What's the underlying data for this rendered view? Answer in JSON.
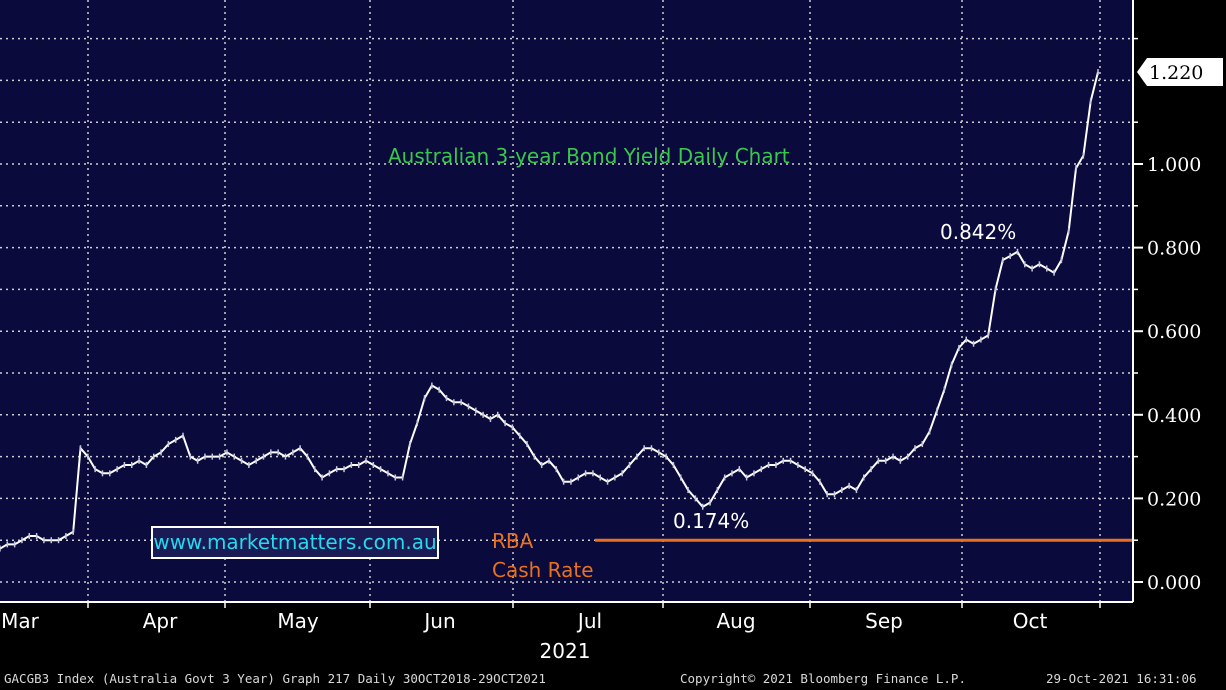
{
  "chart_data": {
    "type": "line",
    "title": "Australian 3-year Bond Yield Daily Chart",
    "year_label": "2021",
    "x_tick_labels": [
      "Mar",
      "Apr",
      "May",
      "Jun",
      "Jul",
      "Aug",
      "Sep",
      "Oct"
    ],
    "y_tick_labels": [
      "0.000",
      "0.200",
      "0.400",
      "0.600",
      "0.800",
      "1.000"
    ],
    "ylim": [
      -0.04,
      1.41
    ],
    "grid": true,
    "last_value_label": "1.220",
    "annotations": {
      "low": "0.174%",
      "high": "0.842%",
      "rba_label_line1": "RBA",
      "rba_label_line2": "Cash Rate"
    },
    "rba_cash_rate": 0.1,
    "series": [
      {
        "values": [
          0.08,
          0.09,
          0.09,
          0.1,
          0.11,
          0.11,
          0.1,
          0.1,
          0.1,
          0.11,
          0.12,
          0.32,
          0.3,
          0.27,
          0.26,
          0.26,
          0.27,
          0.28,
          0.28,
          0.29,
          0.28,
          0.3,
          0.31,
          0.33,
          0.34,
          0.35,
          0.3,
          0.29,
          0.3,
          0.3,
          0.3,
          0.31,
          0.3,
          0.29,
          0.28,
          0.29,
          0.3,
          0.31,
          0.31,
          0.3,
          0.31,
          0.32,
          0.3,
          0.27,
          0.25,
          0.26,
          0.27,
          0.27,
          0.28,
          0.28,
          0.29,
          0.28,
          0.27,
          0.26,
          0.25,
          0.25,
          0.33,
          0.38,
          0.44,
          0.47,
          0.46,
          0.44,
          0.43,
          0.43,
          0.42,
          0.41,
          0.4,
          0.39,
          0.4,
          0.38,
          0.37,
          0.35,
          0.33,
          0.3,
          0.28,
          0.29,
          0.27,
          0.24,
          0.24,
          0.25,
          0.26,
          0.26,
          0.25,
          0.24,
          0.25,
          0.26,
          0.28,
          0.3,
          0.32,
          0.32,
          0.31,
          0.3,
          0.28,
          0.25,
          0.22,
          0.2,
          0.18,
          0.19,
          0.22,
          0.25,
          0.26,
          0.27,
          0.25,
          0.26,
          0.27,
          0.28,
          0.28,
          0.29,
          0.29,
          0.28,
          0.27,
          0.26,
          0.24,
          0.21,
          0.21,
          0.22,
          0.23,
          0.22,
          0.25,
          0.27,
          0.29,
          0.29,
          0.3,
          0.29,
          0.3,
          0.32,
          0.33,
          0.36,
          0.41,
          0.46,
          0.52,
          0.56,
          0.58,
          0.57,
          0.58,
          0.59,
          0.7,
          0.77,
          0.78,
          0.79,
          0.76,
          0.75,
          0.76,
          0.75,
          0.74,
          0.77,
          0.84,
          0.99,
          1.02,
          1.15,
          1.22
        ]
      }
    ]
  },
  "footer": {
    "left": "GACGB3 Index (Australia Govt 3 Year) Graph 217  Daily 30OCT2018-29OCT2021",
    "center": "Copyright© 2021 Bloomberg Finance L.P.",
    "right": "29-Oct-2021 16:31:06"
  },
  "watermark": "www.marketmatters.com.au",
  "colors": {
    "plot_background": "#0a0a3c",
    "grid": "#cfcfcf",
    "line": "#ffffff",
    "title": "#39c84a",
    "rba": "#e8701e",
    "label": "#ffffff",
    "axis_background": "#000000"
  }
}
